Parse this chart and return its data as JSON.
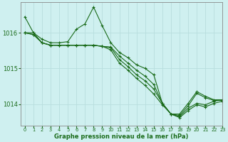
{
  "title": "Graphe pression niveau de la mer (hPa)",
  "bg_color": "#cff0f0",
  "grid_color": "#b8dede",
  "line_color": "#1a6b1a",
  "xlim": [
    -0.5,
    23
  ],
  "ylim": [
    1013.4,
    1016.85
  ],
  "yticks": [
    1014,
    1015,
    1016
  ],
  "xticks": [
    0,
    1,
    2,
    3,
    4,
    5,
    6,
    7,
    8,
    9,
    10,
    11,
    12,
    13,
    14,
    15,
    16,
    17,
    18,
    19,
    20,
    21,
    22,
    23
  ],
  "series": [
    [
      1016.45,
      1016.0,
      1015.82,
      1015.72,
      1015.72,
      1015.75,
      1016.1,
      1016.25,
      1016.72,
      1016.2,
      1015.72,
      1015.45,
      1015.3,
      1015.1,
      1015.0,
      1014.82,
      1014.02,
      1013.72,
      1013.72,
      1014.02,
      1014.35,
      1014.22,
      1014.12,
      1014.12
    ],
    [
      1016.0,
      1016.0,
      1015.72,
      1015.65,
      1015.65,
      1015.65,
      1015.65,
      1015.65,
      1015.65,
      1015.62,
      1015.6,
      1015.35,
      1015.15,
      1014.95,
      1014.78,
      1014.55,
      1014.02,
      1013.72,
      1013.68,
      1013.95,
      1014.3,
      1014.18,
      1014.1,
      1014.1
    ],
    [
      1016.0,
      1015.95,
      1015.72,
      1015.65,
      1015.65,
      1015.65,
      1015.65,
      1015.65,
      1015.65,
      1015.62,
      1015.58,
      1015.25,
      1015.05,
      1014.82,
      1014.65,
      1014.42,
      1014.02,
      1013.72,
      1013.65,
      1013.88,
      1014.02,
      1013.98,
      1014.08,
      1014.12
    ],
    [
      1016.0,
      1015.95,
      1015.72,
      1015.65,
      1015.65,
      1015.65,
      1015.65,
      1015.65,
      1015.65,
      1015.62,
      1015.52,
      1015.15,
      1014.95,
      1014.72,
      1014.52,
      1014.28,
      1013.98,
      1013.72,
      1013.62,
      1013.82,
      1013.98,
      1013.92,
      1014.02,
      1014.08
    ]
  ]
}
